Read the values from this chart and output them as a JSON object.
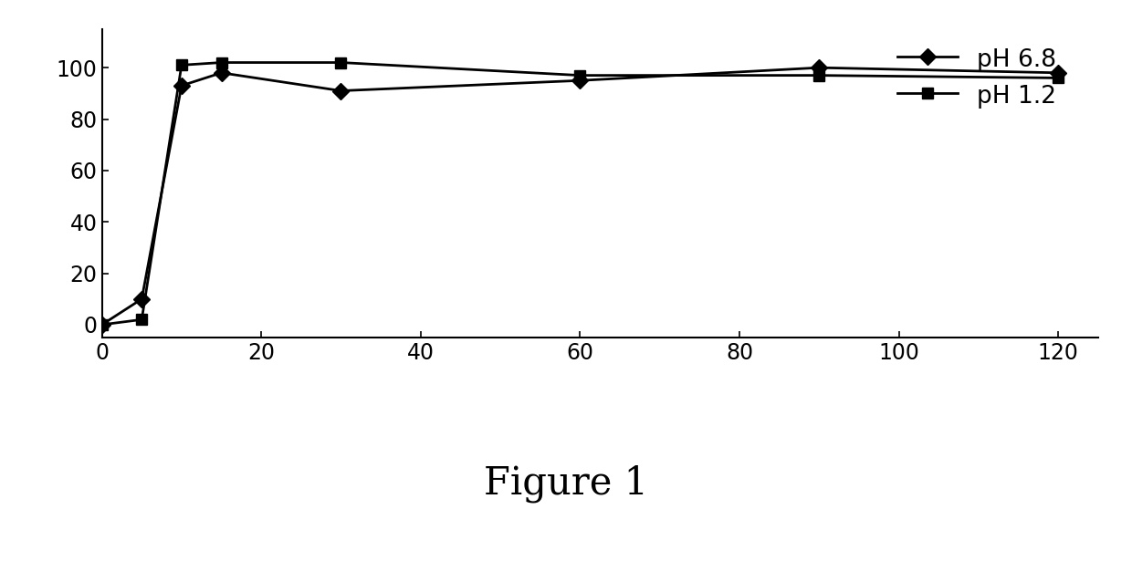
{
  "ph68_x": [
    0,
    5,
    10,
    15,
    30,
    60,
    90,
    120
  ],
  "ph68_y": [
    0,
    10,
    93,
    98,
    91,
    95,
    100,
    98
  ],
  "ph12_x": [
    0,
    5,
    10,
    15,
    30,
    60,
    90,
    120
  ],
  "ph12_y": [
    0,
    2,
    101,
    102,
    102,
    97,
    97,
    96
  ],
  "xlim": [
    0,
    125
  ],
  "ylim": [
    -5,
    115
  ],
  "xticks": [
    0,
    20,
    40,
    60,
    80,
    100,
    120
  ],
  "yticks": [
    0,
    20,
    40,
    60,
    80,
    100
  ],
  "line_color": "#000000",
  "marker_ph68": "D",
  "marker_ph12": "s",
  "markersize": 9,
  "linewidth": 2.0,
  "legend_ph68": "pH 6.8",
  "legend_ph12": "pH 1.2",
  "figure_label": "Figure 1",
  "figure_label_fontsize": 30,
  "background_color": "#ffffff",
  "tick_fontsize": 17,
  "legend_fontsize": 19
}
